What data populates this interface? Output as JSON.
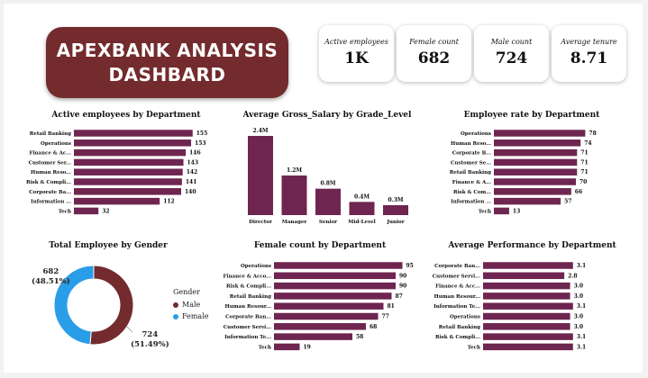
{
  "dashboard": {
    "title_line1": "APEXBANK ANALYSIS",
    "title_line2": "DASHBARD",
    "accent": "#732b2d",
    "bar_color": "#6e2651"
  },
  "kpis": [
    {
      "label": "Active employees",
      "value": "1K"
    },
    {
      "label": "Female count",
      "value": "682"
    },
    {
      "label": "Male count",
      "value": "724"
    },
    {
      "label": "Average tenure",
      "value": "8.71"
    }
  ],
  "chart_data": [
    {
      "type": "bar",
      "orientation": "horizontal",
      "title": "Active employees by Department",
      "categories": [
        "Retail Banking",
        "Operations",
        "Finance & Ac...",
        "Customer Ser...",
        "Human Reso...",
        "Risk & Compli...",
        "Corporate Ba...",
        "Information ...",
        "Tech"
      ],
      "values": [
        155,
        153,
        146,
        143,
        142,
        141,
        140,
        112,
        32
      ],
      "value_labels": [
        "155",
        "153",
        "146",
        "143",
        "142",
        "141",
        "140",
        "112",
        "32"
      ],
      "xlim": [
        0,
        160
      ]
    },
    {
      "type": "bar",
      "orientation": "vertical",
      "title": "Average Gross_Salary by Grade_Level",
      "categories": [
        "Director",
        "Manager",
        "Senior",
        "Mid-Level",
        "Junior"
      ],
      "values": [
        2.4,
        1.2,
        0.8,
        0.4,
        0.3
      ],
      "value_labels": [
        "2.4M",
        "1.2M",
        "0.8M",
        "0.4M",
        "0.3M"
      ],
      "ylim": [
        0,
        2.4
      ]
    },
    {
      "type": "bar",
      "orientation": "horizontal",
      "title": "Employee rate by Department",
      "categories": [
        "Operations",
        "Human Reso...",
        "Corporate B...",
        "Customer Se...",
        "Retail Banking",
        "Finance & A...",
        "Risk & Com...",
        "Information ...",
        "Tech"
      ],
      "values": [
        78,
        74,
        71,
        71,
        71,
        70,
        66,
        57,
        13
      ],
      "value_labels": [
        "78",
        "74",
        "71",
        "71",
        "71",
        "70",
        "66",
        "57",
        "13"
      ],
      "xlim": [
        0,
        80
      ]
    },
    {
      "type": "pie",
      "style": "donut",
      "title": "Total Employee by Gender",
      "legend_title": "Gender",
      "slices": [
        {
          "name": "Male",
          "value": 724,
          "label": "724",
          "pct": "(51.49%)",
          "color": "#732b2d"
        },
        {
          "name": "Female",
          "value": 682,
          "label": "682",
          "pct": "(48.51%)",
          "color": "#2a9de8"
        }
      ]
    },
    {
      "type": "bar",
      "orientation": "horizontal",
      "title": "Female count by Department",
      "categories": [
        "Operations",
        "Finance & Acco...",
        "Risk & Compli...",
        "Retail Banking",
        "Human Resour...",
        "Corporate Ban...",
        "Customer Servi...",
        "Information Te...",
        "Tech"
      ],
      "values": [
        95,
        90,
        90,
        87,
        81,
        77,
        68,
        58,
        19
      ],
      "value_labels": [
        "95",
        "90",
        "90",
        "87",
        "81",
        "77",
        "68",
        "58",
        "19"
      ],
      "xlim": [
        0,
        100
      ]
    },
    {
      "type": "bar",
      "orientation": "horizontal",
      "title": "Average Performance by Department",
      "categories": [
        "Corporate Ban...",
        "Customer Servi...",
        "Finance & Acc...",
        "Human Resour...",
        "Information Te...",
        "Operations",
        "Retail Banking",
        "Risk & Compli...",
        "Tech"
      ],
      "values": [
        3.1,
        2.8,
        3.0,
        3.0,
        3.1,
        3.0,
        3.0,
        3.1,
        3.1
      ],
      "value_labels": [
        "3.1",
        "2.8",
        "3.0",
        "3.0",
        "3.1",
        "3.0",
        "3.0",
        "3.1",
        "3.1"
      ],
      "xlim": [
        0,
        3.2
      ]
    }
  ]
}
